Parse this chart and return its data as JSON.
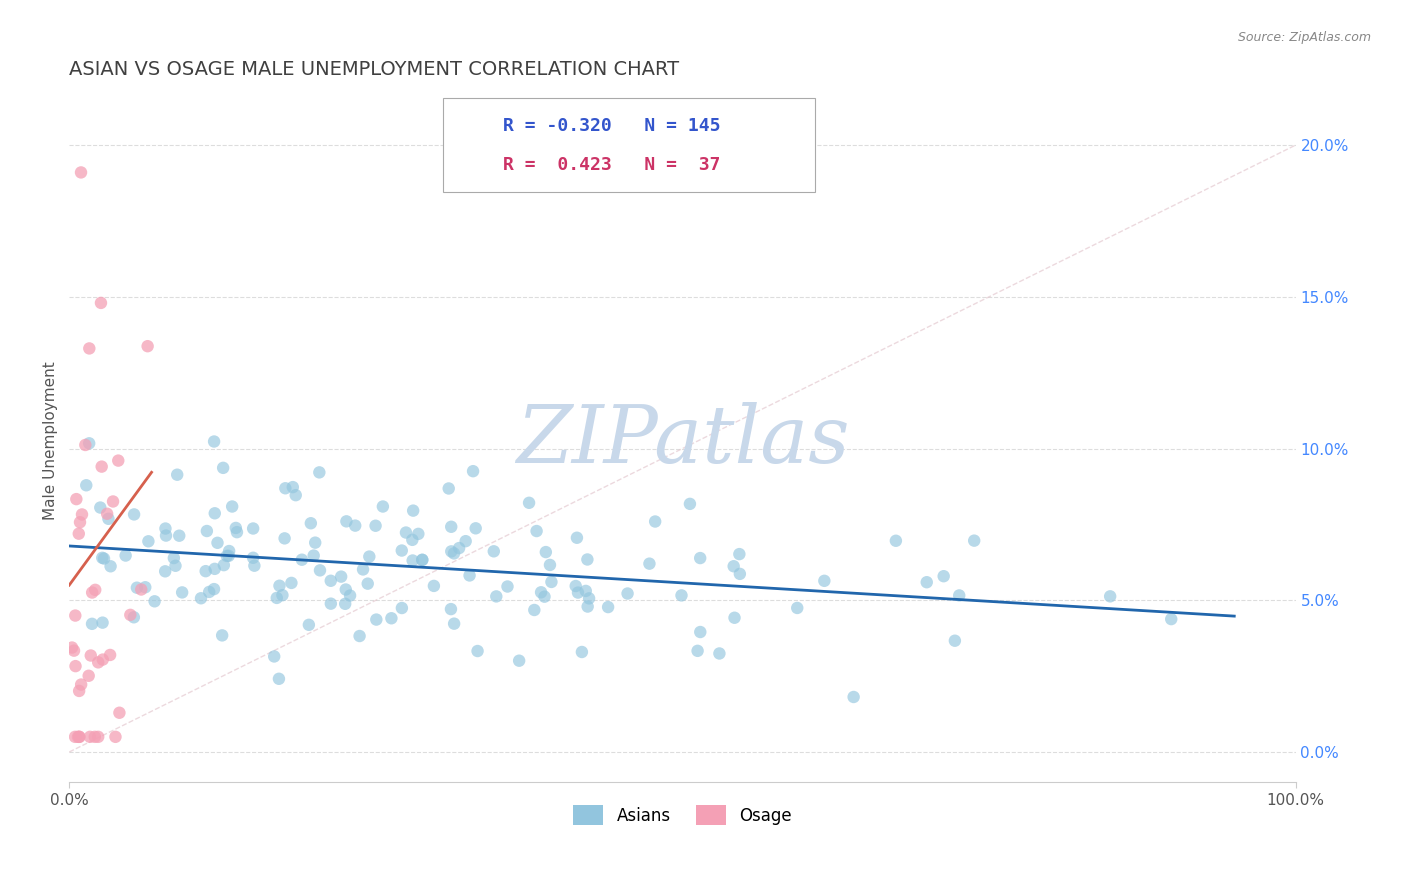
{
  "title": "ASIAN VS OSAGE MALE UNEMPLOYMENT CORRELATION CHART",
  "source_text": "Source: ZipAtlas.com",
  "ylabel": "Male Unemployment",
  "xlim": [
    0,
    1.0
  ],
  "ylim": [
    -0.01,
    0.215
  ],
  "yticks_right": [
    0.0,
    0.05,
    0.1,
    0.15,
    0.2
  ],
  "ytick_labels_right": [
    "0.0%",
    "5.0%",
    "10.0%",
    "15.0%",
    "20.0%"
  ],
  "xtick_positions": [
    0.0,
    1.0
  ],
  "xtick_labels": [
    "0.0%",
    "100.0%"
  ],
  "legend_r_asian": "-0.320",
  "legend_n_asian": "145",
  "legend_r_osage": "0.423",
  "legend_n_osage": "37",
  "asian_color": "#92c5de",
  "osage_color": "#f4a0b5",
  "asian_line_color": "#2166ac",
  "osage_line_color": "#d6604d",
  "diag_line_color": "#e0c0c8",
  "watermark": "ZIPatlas",
  "watermark_color": "#c8d8ea",
  "background_color": "#ffffff",
  "grid_color": "#dddddd",
  "title_color": "#404040",
  "title_fontsize": 14,
  "source_fontsize": 9,
  "asian_seed": 42,
  "osage_seed": 99
}
